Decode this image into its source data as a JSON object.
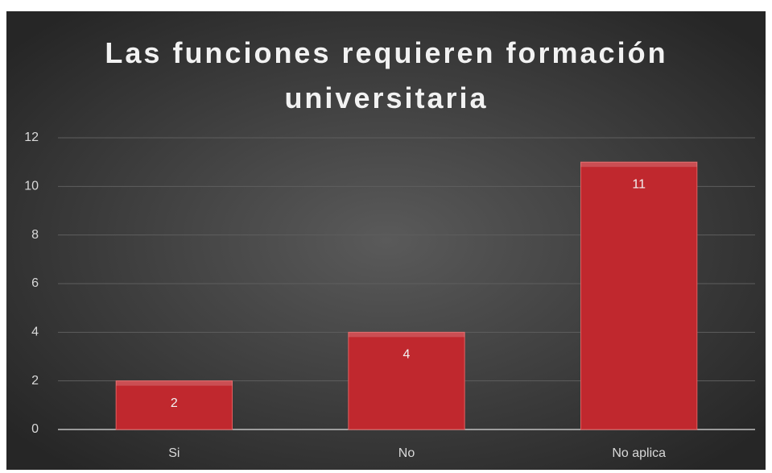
{
  "chart_data": {
    "type": "bar",
    "title": "Las funciones requieren formación universitaria",
    "categories": [
      "Si",
      "No",
      "No aplica"
    ],
    "values": [
      2,
      4,
      11
    ],
    "color": "#c0282e",
    "ylim": [
      0,
      12
    ],
    "yticks": [
      0,
      2,
      4,
      6,
      8,
      10,
      12
    ],
    "grid": true,
    "data_labels": true
  }
}
